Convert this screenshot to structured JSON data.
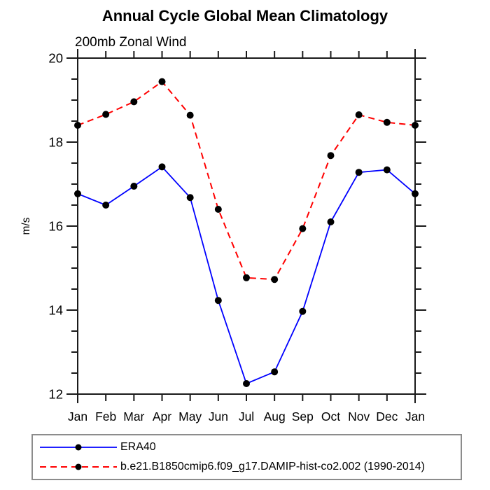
{
  "page": {
    "background": "#ffffff"
  },
  "chart_data": {
    "type": "line",
    "title": "Annual Cycle Global Mean Climatology",
    "subtitle": "200mb Zonal Wind",
    "ylabel": "m/s",
    "xlabel": "",
    "categories": [
      "Jan",
      "Feb",
      "Mar",
      "Apr",
      "May",
      "Jun",
      "Jul",
      "Aug",
      "Sep",
      "Oct",
      "Nov",
      "Dec",
      "Jan"
    ],
    "ylim": [
      12,
      20
    ],
    "yticks": [
      12,
      14,
      16,
      18,
      20
    ],
    "minor_tick_step": 0.5,
    "grid": false,
    "axis_color": "#1a1a1a",
    "marker": {
      "shape": "circle",
      "color": "#000000",
      "radius": 5
    },
    "series": [
      {
        "name": "ERA40",
        "color": "#0000ff",
        "style": "solid",
        "values": [
          16.77,
          16.5,
          16.95,
          17.41,
          16.68,
          14.23,
          12.25,
          12.53,
          13.97,
          16.1,
          17.28,
          17.34,
          16.77
        ]
      },
      {
        "name": "b.e21.B1850cmip6.f09_g17.DAMIP-hist-co2.002 (1990-2014)",
        "color": "#ff0000",
        "style": "dashed",
        "values": [
          18.4,
          18.66,
          18.96,
          19.44,
          18.64,
          16.4,
          14.77,
          14.73,
          15.94,
          17.68,
          18.65,
          18.47,
          18.4
        ]
      }
    ],
    "legend": {
      "position": "bottom-left"
    }
  }
}
